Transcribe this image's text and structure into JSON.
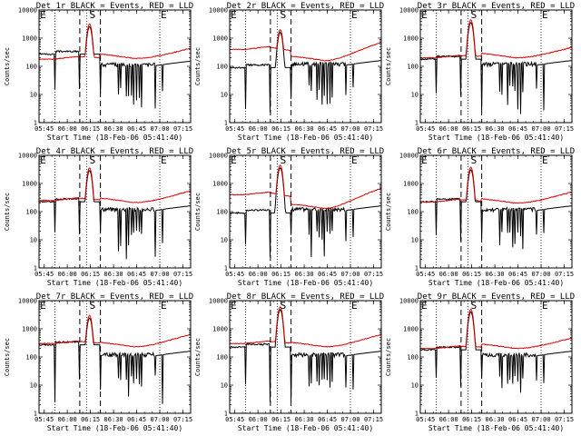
{
  "chart_data": {
    "type": "line",
    "grid": false,
    "x_axis": {
      "range": [
        "05:41:40",
        "07:20"
      ],
      "tick_labels": [
        "05:45",
        "06:00",
        "06:15",
        "06:30",
        "06:45",
        "07:00",
        "07:15"
      ],
      "tick_hours": [
        5.75,
        6.0,
        6.25,
        6.5,
        6.75,
        7.0,
        7.25
      ],
      "range_hours": [
        5.6944,
        7.3333
      ],
      "label": "Start Time (18-Feb-06 05:41:40)"
    },
    "y_axis": {
      "scale": "log",
      "range": [
        1,
        10000
      ],
      "tick_labels": [
        "1",
        "10",
        "100",
        "1000",
        "10000"
      ],
      "label": "Counts/sec"
    },
    "markers": {
      "dotted_vertical": [
        5.866,
        6.208,
        7.0
      ],
      "dashed_vertical": [
        6.135,
        6.358
      ],
      "letters": [
        {
          "text": "E",
          "x_hours": 5.705
        },
        {
          "text": "S",
          "x_hours": 6.24
        },
        {
          "text": "E",
          "x_hours": 7.01
        }
      ]
    },
    "panels": [
      {
        "title": "Det 1r  BLACK = Events, RED = LLD",
        "red_base": 180,
        "black_base": 300,
        "peak": 3200,
        "red_floor": 190,
        "black_post": 95
      },
      {
        "title": "Det 2r  BLACK = Events, RED = LLD",
        "red_base": 400,
        "black_base": 100,
        "peak": 2000,
        "red_floor": 160,
        "black_post": 100
      },
      {
        "title": "Det 3r  BLACK = Events, RED = LLD",
        "red_base": 200,
        "black_base": 200,
        "peak": 4500,
        "red_floor": 200,
        "black_post": 100
      },
      {
        "title": "Det 4r  BLACK = Events, RED = LLD",
        "red_base": 250,
        "black_base": 250,
        "peak": 3600,
        "red_floor": 210,
        "black_post": 100
      },
      {
        "title": "Det 5r  BLACK = Events, RED = LLD",
        "red_base": 400,
        "black_base": 100,
        "peak": 4500,
        "red_floor": 130,
        "black_post": 100
      },
      {
        "title": "Det 6r  BLACK = Events, RED = LLD",
        "red_base": 220,
        "black_base": 250,
        "peak": 3800,
        "red_floor": 200,
        "black_post": 100
      },
      {
        "title": "Det 7r  BLACK = Events, RED = LLD",
        "red_base": 300,
        "black_base": 300,
        "peak": 3000,
        "red_floor": 230,
        "black_post": 100
      },
      {
        "title": "Det 8r  BLACK = Events, RED = LLD",
        "red_base": 300,
        "black_base": 250,
        "peak": 6000,
        "red_floor": 230,
        "black_post": 100
      },
      {
        "title": "Det 9r  BLACK = Events, RED = LLD",
        "red_base": 200,
        "black_base": 200,
        "peak": 5000,
        "red_floor": 200,
        "black_post": 100
      }
    ]
  }
}
